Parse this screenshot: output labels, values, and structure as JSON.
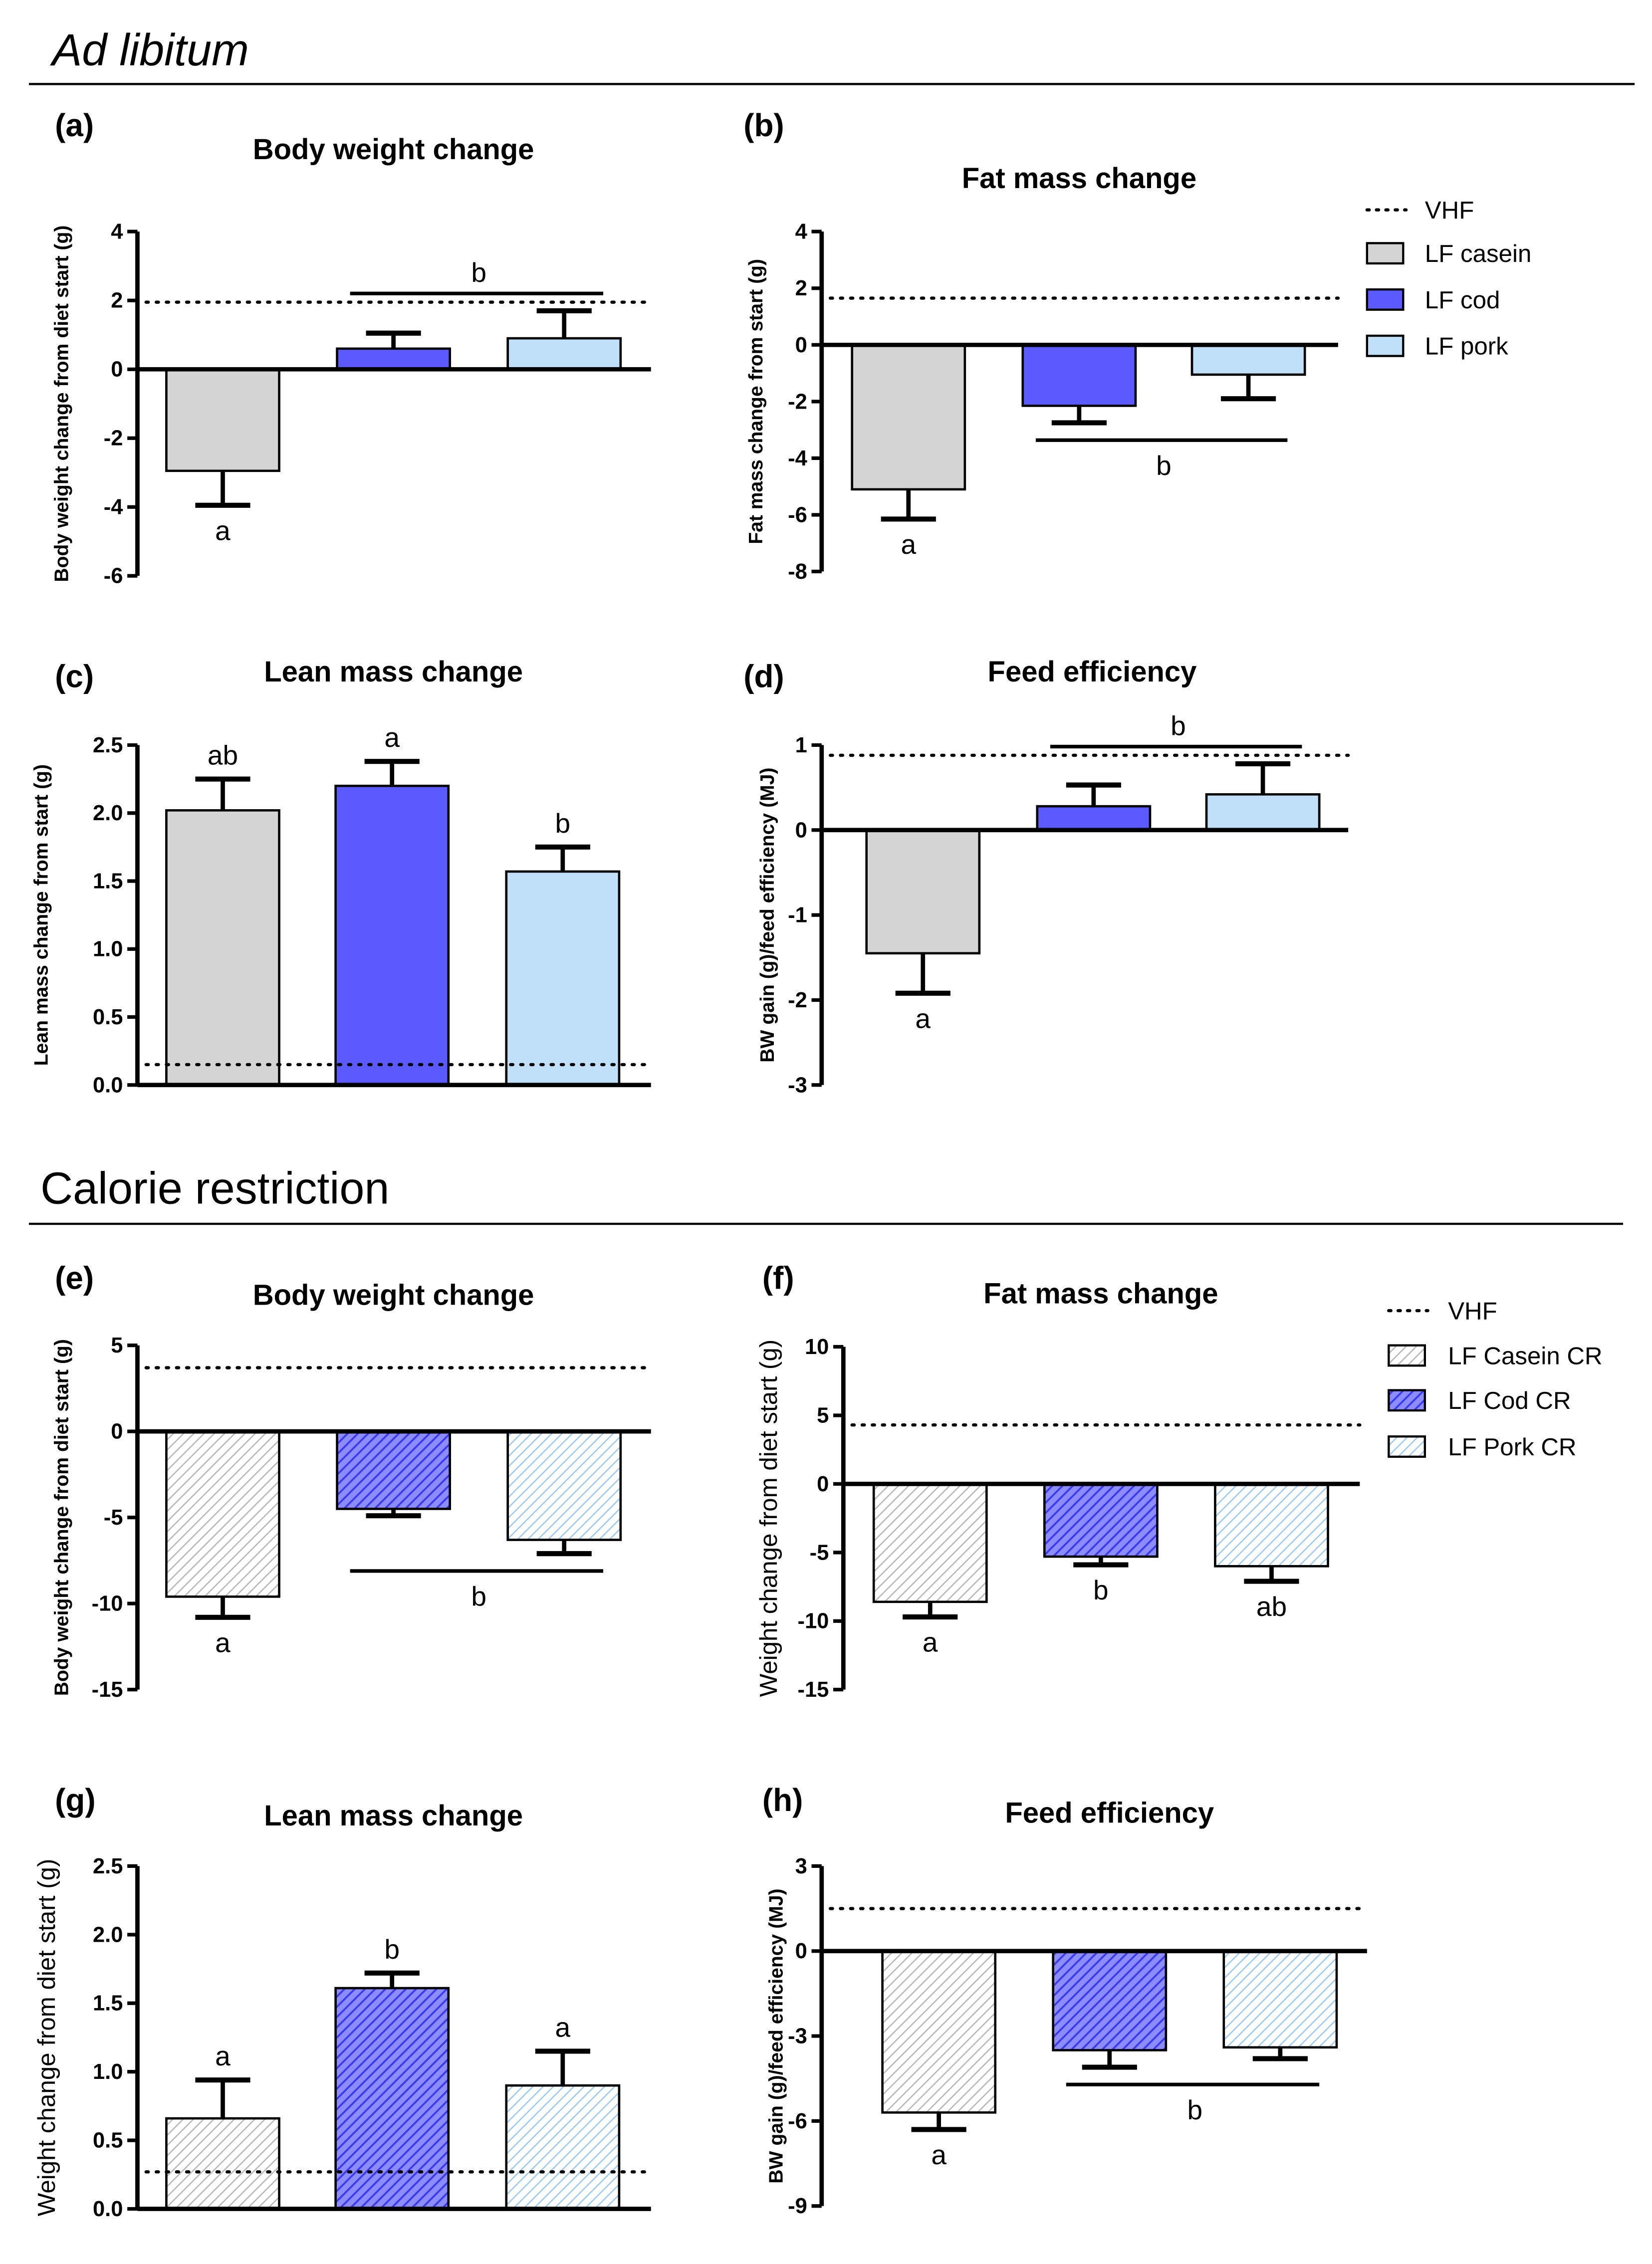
{
  "sections": [
    {
      "title": "Ad libitum",
      "italic": true
    },
    {
      "title": "Calorie restriction",
      "italic": false
    }
  ],
  "legends": [
    {
      "items": [
        {
          "label": "VHF",
          "type": "dotted-line"
        },
        {
          "label": "LF casein",
          "color": "#d4d4d4"
        },
        {
          "label": "LF cod",
          "color": "#5a5aff"
        },
        {
          "label": "LF pork",
          "color": "#c0dff8"
        }
      ]
    },
    {
      "items": [
        {
          "label": "VHF",
          "type": "dotted-line"
        },
        {
          "label": "LF Casein CR",
          "color": "#d4d4d4",
          "hatched": true
        },
        {
          "label": "LF Cod CR",
          "color": "#5a5aff",
          "hatched": true
        },
        {
          "label": "LF Pork CR",
          "color": "#c0dff8",
          "hatched": true
        }
      ]
    }
  ],
  "chart_data": [
    {
      "panel": "(a)",
      "type": "bar",
      "title": "Body weight change",
      "ylabel": "Body weight change from diet start (g)",
      "ylim": [
        -6,
        4
      ],
      "ytick_step": 2,
      "categories": [
        "LF casein",
        "LF cod",
        "LF pork"
      ],
      "values": [
        -2.95,
        0.6,
        0.9
      ],
      "error_ends": [
        -3.95,
        1.05,
        1.7
      ],
      "reference_VHF": 1.95,
      "annotations": [
        {
          "text": "a",
          "bars": [
            0
          ],
          "side": "below"
        },
        {
          "text": "b",
          "bars": [
            1,
            2
          ],
          "side": "above",
          "line": true
        }
      ]
    },
    {
      "panel": "(b)",
      "type": "bar",
      "title": "Fat mass change",
      "ylabel": "Fat mass change from start (g)",
      "ylim": [
        -8,
        4
      ],
      "ytick_step": 2,
      "categories": [
        "LF casein",
        "LF cod",
        "LF pork"
      ],
      "values": [
        -5.1,
        -2.15,
        -1.05
      ],
      "error_ends": [
        -6.15,
        -2.75,
        -1.9
      ],
      "reference_VHF": 1.65,
      "annotations": [
        {
          "text": "a",
          "bars": [
            0
          ],
          "side": "below"
        },
        {
          "text": "b",
          "bars": [
            1,
            2
          ],
          "side": "below",
          "line": true
        }
      ]
    },
    {
      "panel": "(c)",
      "type": "bar",
      "title": "Lean mass change",
      "ylabel": "Lean mass change from start (g)",
      "ylim": [
        0,
        2.5
      ],
      "ytick_step": 0.5,
      "categories": [
        "LF casein",
        "LF cod",
        "LF pork"
      ],
      "values": [
        2.02,
        2.2,
        1.57
      ],
      "error_ends": [
        2.25,
        2.38,
        1.75
      ],
      "reference_VHF": 0.15,
      "annotations": [
        {
          "text": "ab",
          "bars": [
            0
          ],
          "side": "above"
        },
        {
          "text": "a",
          "bars": [
            1
          ],
          "side": "above"
        },
        {
          "text": "b",
          "bars": [
            2
          ],
          "side": "above"
        }
      ]
    },
    {
      "panel": "(d)",
      "type": "bar",
      "title": "Feed efficiency",
      "ylabel": "BW gain (g)/feed efficiency (MJ)",
      "ylim": [
        -3,
        1
      ],
      "ytick_step": 1,
      "categories": [
        "LF casein",
        "LF cod",
        "LF pork"
      ],
      "values": [
        -1.45,
        0.28,
        0.42
      ],
      "error_ends": [
        -1.92,
        0.53,
        0.78
      ],
      "reference_VHF": 0.88,
      "annotations": [
        {
          "text": "a",
          "bars": [
            0
          ],
          "side": "below"
        },
        {
          "text": "b",
          "bars": [
            1,
            2
          ],
          "side": "above",
          "line": true
        }
      ]
    },
    {
      "panel": "(e)",
      "type": "bar",
      "title": "Body weight change",
      "ylabel": "Body weight change from diet start (g)",
      "ylim": [
        -15,
        5
      ],
      "ytick_step": 5,
      "categories": [
        "LF Casein CR",
        "LF Cod CR",
        "LF Pork CR"
      ],
      "values": [
        -9.6,
        -4.5,
        -6.3
      ],
      "error_ends": [
        -10.8,
        -4.9,
        -7.1
      ],
      "reference_VHF": 3.7,
      "annotations": [
        {
          "text": "a",
          "bars": [
            0
          ],
          "side": "below"
        },
        {
          "text": "b",
          "bars": [
            1,
            2
          ],
          "side": "below",
          "line": true
        }
      ]
    },
    {
      "panel": "(f)",
      "type": "bar",
      "title": "Fat mass change",
      "ylabel": "Weight change from diet start (g)",
      "ylim": [
        -15,
        10
      ],
      "ytick_step": 5,
      "categories": [
        "LF Casein CR",
        "LF Cod CR",
        "LF Pork CR"
      ],
      "values": [
        -8.6,
        -5.3,
        -6.0
      ],
      "error_ends": [
        -9.7,
        -5.9,
        -7.1
      ],
      "reference_VHF": 4.3,
      "annotations": [
        {
          "text": "a",
          "bars": [
            0
          ],
          "side": "below"
        },
        {
          "text": "b",
          "bars": [
            1
          ],
          "side": "below"
        },
        {
          "text": "ab",
          "bars": [
            2
          ],
          "side": "below"
        }
      ]
    },
    {
      "panel": "(g)",
      "type": "bar",
      "title": "Lean mass change",
      "ylabel": "Weight change from diet start (g)",
      "ylim": [
        0,
        2.5
      ],
      "ytick_step": 0.5,
      "categories": [
        "LF Casein CR",
        "LF Cod CR",
        "LF Pork CR"
      ],
      "values": [
        0.66,
        1.61,
        0.9
      ],
      "error_ends": [
        0.94,
        1.72,
        1.15
      ],
      "reference_VHF": 0.27,
      "annotations": [
        {
          "text": "a",
          "bars": [
            0
          ],
          "side": "above"
        },
        {
          "text": "b",
          "bars": [
            1
          ],
          "side": "above"
        },
        {
          "text": "a",
          "bars": [
            2
          ],
          "side": "above"
        }
      ]
    },
    {
      "panel": "(h)",
      "type": "bar",
      "title": "Feed efficiency",
      "ylabel": "BW gain (g)/feed efficiency (MJ)",
      "ylim": [
        -9,
        3
      ],
      "ytick_step": 3,
      "categories": [
        "LF Casein CR",
        "LF Cod CR",
        "LF Pork CR"
      ],
      "values": [
        -5.7,
        -3.5,
        -3.4
      ],
      "error_ends": [
        -6.3,
        -4.1,
        -3.8
      ],
      "reference_VHF": 1.5,
      "annotations": [
        {
          "text": "a",
          "bars": [
            0
          ],
          "side": "below"
        },
        {
          "text": "b",
          "bars": [
            1,
            2
          ],
          "side": "below",
          "line": true
        }
      ]
    }
  ]
}
